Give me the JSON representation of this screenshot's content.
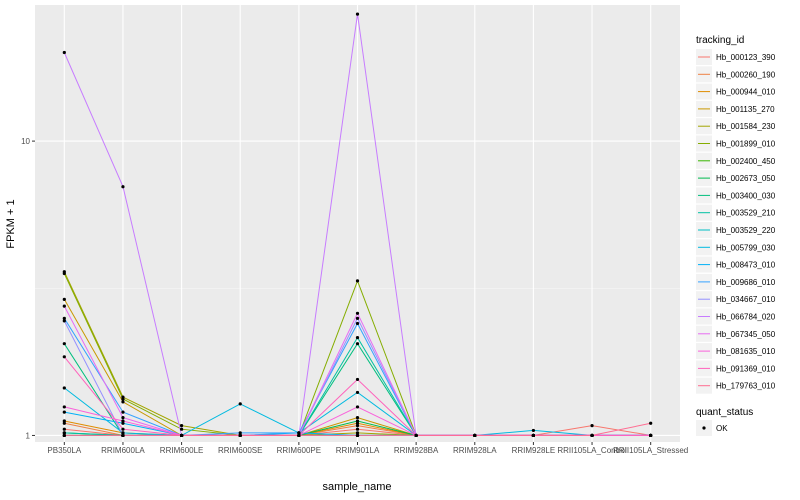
{
  "chart_data": {
    "type": "line",
    "xlabel": "sample_name",
    "ylabel": "FPKM + 1",
    "y_scale": "log10",
    "ylim": [
      0.95,
      29
    ],
    "y_ticks": [
      1,
      10
    ],
    "y_tick_labels": [
      "1",
      "10"
    ],
    "grid": true,
    "legend_placement": "right",
    "legend_title": "tracking_id",
    "legend2_title": "quant_status",
    "legend2_entries": [
      "OK"
    ],
    "categories": [
      "PB350LA",
      "RRIM600LA",
      "RRIM600LE",
      "RRIM600SE",
      "RRIM600PE",
      "RRIM901LA",
      "RRIM928BA",
      "RRIM928LA",
      "RRIM928LE",
      "RRII105LA_Control",
      "RRII105LA_Stressed"
    ],
    "series": [
      {
        "name": "Hb_000123_390",
        "color": "#F8766D",
        "values": [
          1.05,
          1.0,
          1.0,
          1.0,
          1.0,
          1.05,
          1.0,
          1.0,
          1.0,
          1.08,
          1.0
        ]
      },
      {
        "name": "Hb_000260_190",
        "color": "#EE8043",
        "values": [
          1.1,
          1.0,
          1.0,
          1.0,
          1.0,
          1.08,
          1.0,
          1.0,
          1.0,
          1.0,
          1.0
        ]
      },
      {
        "name": "Hb_000944_010",
        "color": "#DF8C00",
        "values": [
          1.12,
          1.02,
          1.0,
          1.0,
          1.0,
          1.1,
          1.0,
          1.0,
          1.0,
          1.0,
          1.0
        ]
      },
      {
        "name": "Hb_001135_270",
        "color": "#C99800",
        "values": [
          2.9,
          1.3,
          1.0,
          1.0,
          1.0,
          1.15,
          1.0,
          1.0,
          1.0,
          1.0,
          1.0
        ]
      },
      {
        "name": "Hb_001584_230",
        "color": "#A3A500",
        "values": [
          3.6,
          1.35,
          1.08,
          1.0,
          1.0,
          1.02,
          1.0,
          1.0,
          1.0,
          1.0,
          1.0
        ]
      },
      {
        "name": "Hb_001899_010",
        "color": "#85AD00",
        "values": [
          3.55,
          1.33,
          1.05,
          1.0,
          1.0,
          3.35,
          1.0,
          1.0,
          1.0,
          1.0,
          1.0
        ]
      },
      {
        "name": "Hb_002400_450",
        "color": "#39B600",
        "values": [
          1.0,
          1.0,
          1.0,
          1.0,
          1.0,
          1.0,
          1.0,
          1.0,
          1.0,
          1.0,
          1.0
        ]
      },
      {
        "name": "Hb_002673_050",
        "color": "#00BB4E",
        "values": [
          1.02,
          1.0,
          1.0,
          1.0,
          1.0,
          1.12,
          1.0,
          1.0,
          1.0,
          1.0,
          1.0
        ]
      },
      {
        "name": "Hb_003400_030",
        "color": "#00BF7D",
        "values": [
          2.05,
          1.0,
          1.0,
          1.0,
          1.0,
          2.05,
          1.0,
          1.0,
          1.0,
          1.0,
          1.0
        ]
      },
      {
        "name": "Hb_003529_210",
        "color": "#00C1A3",
        "values": [
          1.02,
          1.0,
          1.0,
          1.0,
          1.0,
          2.15,
          1.0,
          1.0,
          1.0,
          1.0,
          1.0
        ]
      },
      {
        "name": "Hb_003529_220",
        "color": "#00BFC4",
        "values": [
          1.0,
          1.0,
          1.0,
          1.0,
          1.0,
          1.0,
          1.0,
          1.0,
          1.0,
          1.0,
          1.0
        ]
      },
      {
        "name": "Hb_005799_030",
        "color": "#00BAE0",
        "values": [
          1.45,
          1.02,
          1.0,
          1.28,
          1.02,
          1.4,
          1.0,
          1.0,
          1.04,
          1.0,
          1.0
        ]
      },
      {
        "name": "Hb_008473_010",
        "color": "#00B0F6",
        "values": [
          1.2,
          1.1,
          1.0,
          1.0,
          1.02,
          1.0,
          1.0,
          1.0,
          1.0,
          1.0,
          1.0
        ]
      },
      {
        "name": "Hb_009686_010",
        "color": "#35A2FF",
        "values": [
          2.5,
          1.2,
          1.0,
          1.02,
          1.02,
          2.4,
          1.0,
          1.0,
          1.0,
          1.0,
          1.0
        ]
      },
      {
        "name": "Hb_034667_010",
        "color": "#9590FF",
        "values": [
          2.45,
          1.0,
          1.0,
          1.0,
          1.0,
          2.5,
          1.0,
          1.0,
          1.0,
          1.0,
          1.0
        ]
      },
      {
        "name": "Hb_066784_020",
        "color": "#C77CFF",
        "values": [
          20.0,
          7.0,
          1.0,
          1.0,
          1.0,
          27.0,
          1.0,
          1.0,
          1.0,
          1.0,
          1.0
        ]
      },
      {
        "name": "Hb_067345_050",
        "color": "#E76BF3",
        "values": [
          2.75,
          1.15,
          1.0,
          1.0,
          1.0,
          2.6,
          1.0,
          1.0,
          1.0,
          1.0,
          1.0
        ]
      },
      {
        "name": "Hb_081635_010",
        "color": "#FA62DB",
        "values": [
          1.25,
          1.12,
          1.0,
          1.0,
          1.0,
          1.25,
          1.0,
          1.0,
          1.0,
          1.0,
          1.0
        ]
      },
      {
        "name": "Hb_091369_010",
        "color": "#FF62BC",
        "values": [
          1.85,
          1.05,
          1.0,
          1.0,
          1.0,
          1.55,
          1.0,
          1.0,
          1.0,
          1.0,
          1.0
        ]
      },
      {
        "name": "Hb_179763_010",
        "color": "#FF6C91",
        "values": [
          1.0,
          1.0,
          1.0,
          1.0,
          1.0,
          1.0,
          1.0,
          1.0,
          1.0,
          1.0,
          1.1
        ]
      }
    ]
  }
}
